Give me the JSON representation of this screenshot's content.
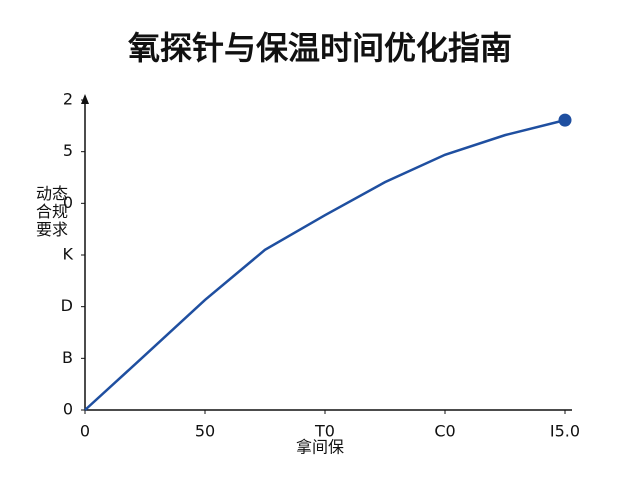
{
  "chart_data": {
    "type": "line",
    "title": "氧探针与保温时间优化指南",
    "x_label": "拿间保",
    "y_label": "动态合规要求",
    "x": [
      0,
      25,
      50,
      75,
      100,
      125,
      150,
      175,
      200
    ],
    "series": [
      {
        "color": "#1f4fa0",
        "values": [
          0,
          1.06,
          2.13,
          3.1,
          3.77,
          4.41,
          4.94,
          5.32,
          5.61
        ]
      }
    ],
    "xlim": [
      0,
      200
    ],
    "xticks": [
      0,
      50,
      {
        "value": 100,
        "label": "T0"
      },
      {
        "value": 150,
        "label": "C0"
      },
      {
        "value": 200,
        "label": "I5.0"
      }
    ],
    "ylim": [
      0,
      6
    ],
    "yticks": [
      0,
      {
        "value": 1,
        "label": "B"
      },
      {
        "value": 2,
        "label": "D"
      },
      {
        "value": 3,
        "label": "K"
      },
      {
        "value": 4,
        "label": "0"
      },
      5,
      {
        "value": 6,
        "label": "2"
      }
    ]
  }
}
